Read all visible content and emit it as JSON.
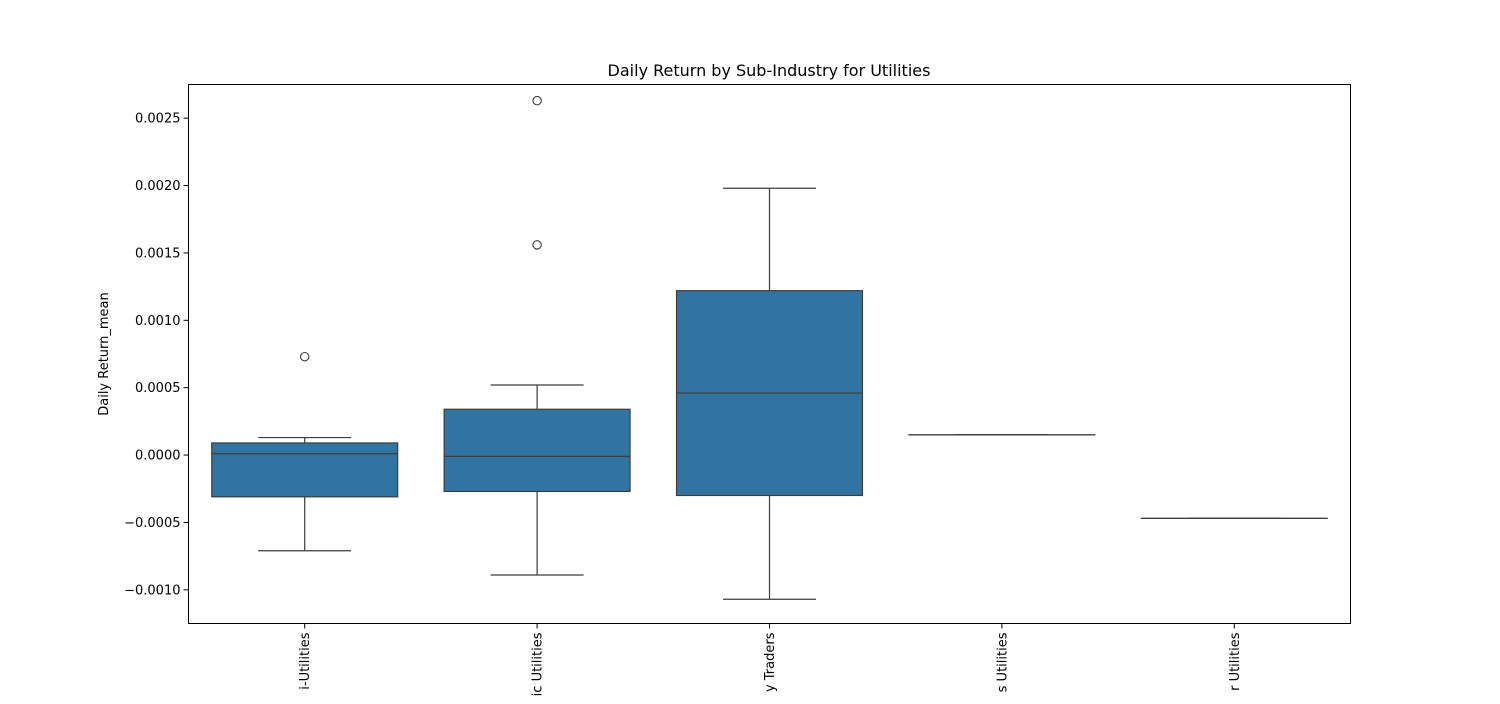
{
  "chart_data": {
    "type": "box",
    "title": "Daily Return by Sub-Industry for Utilities",
    "xlabel": "",
    "ylabel": "Daily Return_mean",
    "ylim": [
      -0.00125,
      0.00275
    ],
    "yticks": [
      -0.001,
      -0.0005,
      0.0,
      0.0005,
      0.001,
      0.0015,
      0.002,
      0.0025
    ],
    "ytick_labels": [
      "−0.0010",
      "−0.0005",
      "0.0000",
      "0.0005",
      "0.0010",
      "0.0015",
      "0.0020",
      "0.0025"
    ],
    "grid": false,
    "color": "#3274a1",
    "categories": [
      "i-Utilities",
      "ic Utilities",
      "y Traders",
      "s Utilities",
      "r Utilities"
    ],
    "boxes": [
      {
        "whisker_low": -0.00071,
        "q1": -0.00031,
        "median": 1e-05,
        "q3": 9e-05,
        "whisker_high": 0.00013,
        "outliers": [
          0.00073
        ]
      },
      {
        "whisker_low": -0.00089,
        "q1": -0.00027,
        "median": -1e-05,
        "q3": 0.00034,
        "whisker_high": 0.00052,
        "outliers": [
          0.00263,
          0.00156
        ]
      },
      {
        "whisker_low": -0.00107,
        "q1": -0.0003,
        "median": 0.00046,
        "q3": 0.00122,
        "whisker_high": 0.00198,
        "outliers": []
      },
      {
        "whisker_low": 0.00015,
        "q1": 0.00015,
        "median": 0.00015,
        "q3": 0.00015,
        "whisker_high": 0.00015,
        "outliers": []
      },
      {
        "whisker_low": -0.00047,
        "q1": -0.00047,
        "median": -0.00047,
        "q3": -0.00047,
        "whisker_high": -0.00047,
        "outliers": []
      }
    ]
  }
}
